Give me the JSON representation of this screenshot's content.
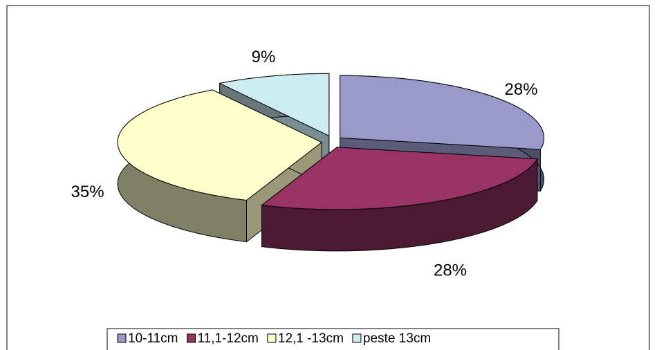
{
  "chart_data": {
    "type": "pie",
    "view": "3d-exploded",
    "categories": [
      "10-11cm",
      "11,1-12cm",
      "12,1 -13cm",
      "peste 13cm"
    ],
    "values": [
      28,
      28,
      35,
      9
    ],
    "value_labels": [
      "28%",
      "28%",
      "35%",
      "9%"
    ],
    "colors": [
      "#9999cc",
      "#993366",
      "#ffffcc",
      "#ccecf2"
    ],
    "legend": "bottom"
  }
}
